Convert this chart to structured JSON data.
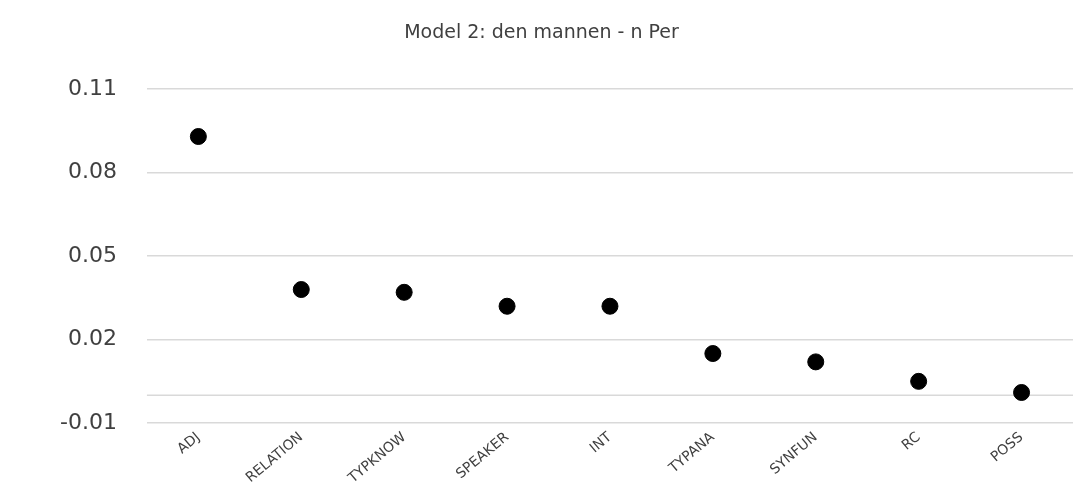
{
  "chart_data": {
    "type": "scatter",
    "title": "Model 2: den mannen - n Per",
    "categories": [
      "ADJ",
      "RELATION",
      "TYPKNOW",
      "SPEAKER",
      "INT",
      "TYPANA",
      "SYNFUN",
      "RC",
      "POSS"
    ],
    "series": [
      {
        "color": "#000000",
        "values": [
          0.093,
          0.038,
          0.037,
          0.032,
          0.032,
          0.015,
          0.012,
          0.005,
          0.001
        ]
      }
    ],
    "ylim": [
      -0.01,
      0.11
    ],
    "yticks": [
      -0.01,
      0.02,
      0.05,
      0.08,
      0.11
    ],
    "grid": "y",
    "legend": false,
    "marker": "circle",
    "ref_lines": [
      {
        "axis": "y",
        "value": 0,
        "color": "#d9d9d9"
      }
    ]
  }
}
